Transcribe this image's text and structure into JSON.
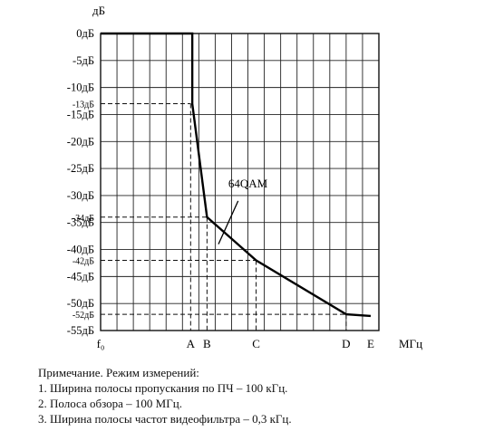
{
  "chart_data": {
    "type": "line",
    "title": "",
    "ylabel": "дБ",
    "xlabel": "МГц",
    "ylim": [
      -55,
      0
    ],
    "grid": true,
    "y_ticks": [
      {
        "value": 0,
        "label": "0дБ"
      },
      {
        "value": -5,
        "label": "-5дБ"
      },
      {
        "value": -10,
        "label": "-10дБ"
      },
      {
        "value": -13,
        "label": "-13дБ",
        "small": true
      },
      {
        "value": -15,
        "label": "-15дБ"
      },
      {
        "value": -20,
        "label": "-20дБ"
      },
      {
        "value": -25,
        "label": "-25дБ"
      },
      {
        "value": -30,
        "label": "-30дБ"
      },
      {
        "value": -34,
        "label": "-34дБ",
        "small": true
      },
      {
        "value": -35,
        "label": "-35дБ"
      },
      {
        "value": -40,
        "label": "-40дБ"
      },
      {
        "value": -42,
        "label": "-42дБ",
        "small": true
      },
      {
        "value": -45,
        "label": "-45дБ"
      },
      {
        "value": -50,
        "label": "-50дБ"
      },
      {
        "value": -52,
        "label": "-52дБ",
        "small": true
      },
      {
        "value": -55,
        "label": "-55дБ"
      }
    ],
    "x_points": [
      {
        "label": "f₀",
        "x": 0
      },
      {
        "label": "A",
        "x": 5.5
      },
      {
        "label": "B",
        "x": 6.5
      },
      {
        "label": "C",
        "x": 9.5
      },
      {
        "label": "D",
        "x": 15
      },
      {
        "label": "E",
        "x": 16.5
      }
    ],
    "xlim": [
      0,
      17
    ],
    "series": [
      {
        "name": "64QAM",
        "points": [
          [
            0,
            0
          ],
          [
            5.6,
            0
          ],
          [
            5.6,
            -13
          ],
          [
            6.5,
            -34
          ],
          [
            9.5,
            -42
          ],
          [
            15,
            -52
          ],
          [
            16.5,
            -52.3
          ]
        ]
      }
    ],
    "reference_lines": [
      {
        "x": 5.5,
        "y": -13
      },
      {
        "x": 6.5,
        "y": -34
      },
      {
        "x": 9.5,
        "y": -42
      },
      {
        "x": 15,
        "y": -52
      }
    ]
  },
  "notes": {
    "title": "Примечание. Режим измерений:",
    "items": [
      "1. Ширина полосы пропускания по ПЧ – 100 кГц.",
      "2. Полоса обзора – 100 МГц.",
      "3. Ширина полосы частот видеофильтра – 0,3 кГц."
    ]
  }
}
